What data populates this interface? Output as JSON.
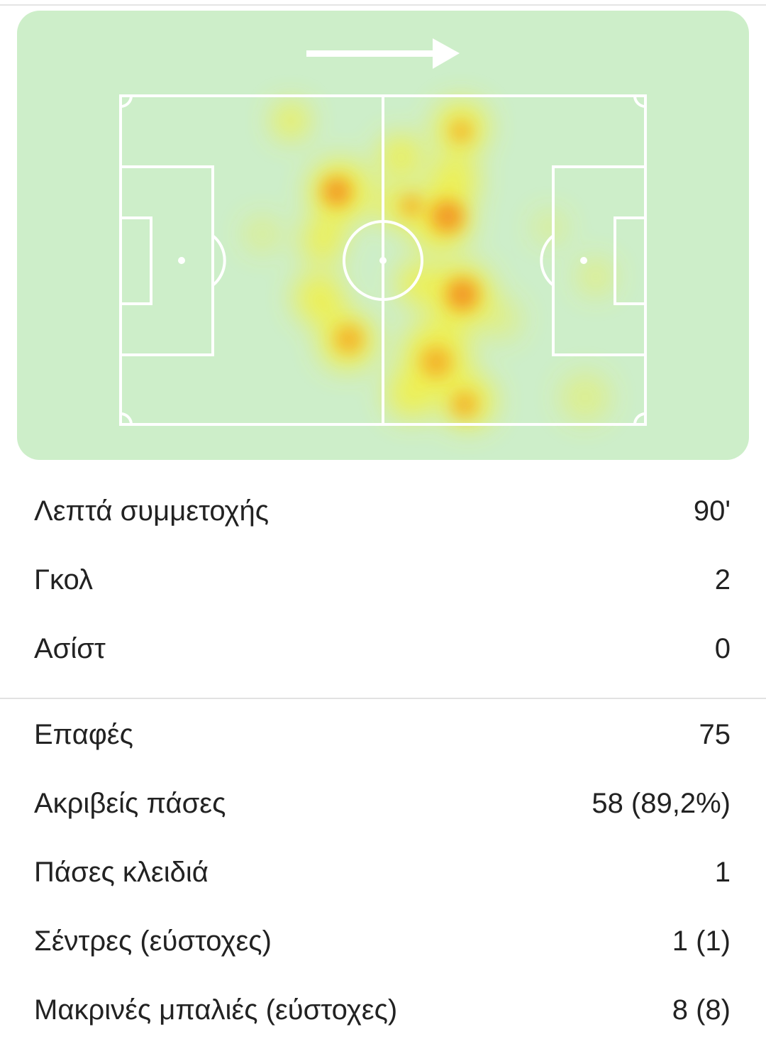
{
  "stats": [
    {
      "rows": [
        {
          "label": "Λεπτά συμμετοχής",
          "value": "90'"
        },
        {
          "label": "Γκολ",
          "value": "2"
        },
        {
          "label": "Ασίστ",
          "value": "0"
        }
      ]
    },
    {
      "rows": [
        {
          "label": "Επαφές",
          "value": "75"
        },
        {
          "label": "Ακριβείς πάσες",
          "value": "58 (89,2%)"
        },
        {
          "label": "Πάσες κλειδιά",
          "value": "1"
        },
        {
          "label": "Σέντρες (εύστοχες)",
          "value": "1 (1)"
        },
        {
          "label": "Μακρινές μπαλιές (εύστοχες)",
          "value": "8 (8)"
        }
      ]
    }
  ]
}
